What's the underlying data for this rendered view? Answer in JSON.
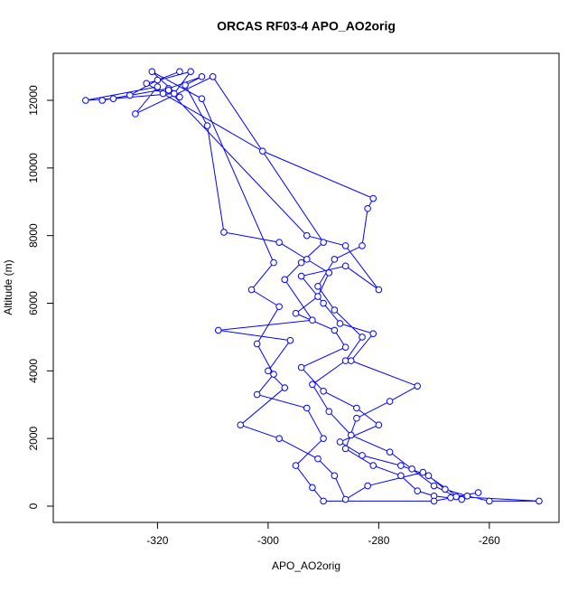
{
  "chart_data": {
    "type": "line",
    "markers": true,
    "title": "ORCAS RF03-4 APO_AO2orig",
    "x_label": "APO_AO2orig",
    "y_label": "Altitude (m)",
    "xlim": [
      -338.85,
      -247.4
    ],
    "ylim": [
      -481,
      13390
    ],
    "xticks": [
      -320,
      -300,
      -280,
      -260
    ],
    "yticks": [
      0,
      2000,
      4000,
      6000,
      8000,
      10000,
      12000
    ],
    "series": [
      {
        "color": "#0000ff",
        "x": [
          -316,
          -320,
          -325,
          -330,
          -318,
          -312,
          -315,
          -311,
          -308,
          -298,
          -293,
          -289,
          -291,
          -295,
          -288,
          -286,
          -294,
          -290,
          -284,
          -280,
          -287,
          -283,
          -276,
          -271,
          -268,
          -264,
          -260,
          -251,
          -266,
          -270,
          -274,
          -278,
          -285,
          -289,
          -292,
          -286,
          -283,
          -288,
          -291,
          -288,
          -283,
          -282,
          -281,
          -301,
          -319,
          -322,
          -314,
          -317,
          -328,
          -333,
          -320,
          -324,
          -310,
          -290,
          -294,
          -297,
          -292,
          -309,
          -296,
          -300,
          -297,
          -305,
          -298,
          -291,
          -288,
          -286,
          -282,
          -272,
          -265,
          -270,
          -273,
          -276,
          -281,
          -286,
          -284,
          -278,
          -273,
          -285,
          -281,
          -287,
          -290,
          -294,
          -286,
          -280,
          -286,
          -293,
          -318,
          -316,
          -321,
          -312,
          -299,
          -303,
          -298,
          -302,
          -299,
          -302,
          -293,
          -290,
          -295,
          -292,
          -290,
          -270,
          -262,
          -267
        ],
        "y": [
          12850,
          12600,
          12150,
          12000,
          12350,
          12700,
          12450,
          11250,
          8100,
          7800,
          7300,
          6900,
          6200,
          5700,
          5200,
          4700,
          4100,
          3400,
          2900,
          2400,
          1900,
          1500,
          1200,
          900,
          500,
          300,
          150,
          150,
          280,
          600,
          1100,
          1600,
          2100,
          2800,
          3600,
          4300,
          5000,
          5800,
          6500,
          7300,
          7700,
          8800,
          9100,
          10500,
          12200,
          12500,
          12850,
          12200,
          12050,
          12000,
          12400,
          11600,
          12700,
          7800,
          7200,
          6700,
          5500,
          5200,
          4900,
          4000,
          3500,
          2400,
          2000,
          1400,
          900,
          200,
          600,
          1000,
          200,
          300,
          450,
          900,
          1200,
          1700,
          2600,
          3100,
          3550,
          4300,
          5100,
          5400,
          6000,
          6800,
          7100,
          6400,
          7700,
          8000,
          12300,
          12100,
          12850,
          12050,
          7200,
          6400,
          5900,
          4800,
          3900,
          3300,
          2900,
          2000,
          1200,
          550,
          150,
          150,
          400,
          250
        ]
      }
    ]
  }
}
